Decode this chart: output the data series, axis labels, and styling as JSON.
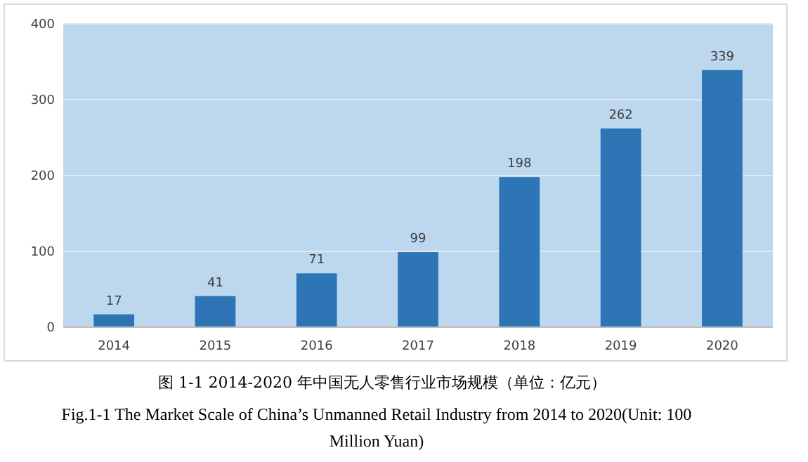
{
  "chart_data": {
    "type": "bar",
    "title": "图 1-1 2014-2020 年中国无人零售行业市场规模（单位：亿元）",
    "subtitle": "Fig.1-1 The Market Scale of China’s Unmanned Retail Industry from 2014 to 2020(Unit: 100 Million Yuan)",
    "categories": [
      "2014",
      "2015",
      "2016",
      "2017",
      "2018",
      "2019",
      "2020"
    ],
    "values": [
      17,
      41,
      71,
      99,
      198,
      262,
      339
    ],
    "color": "#2e75b6",
    "ylim": [
      0,
      400
    ],
    "yticks": [
      0,
      100,
      200,
      300,
      400
    ],
    "grid": "y",
    "data_labels": true
  }
}
